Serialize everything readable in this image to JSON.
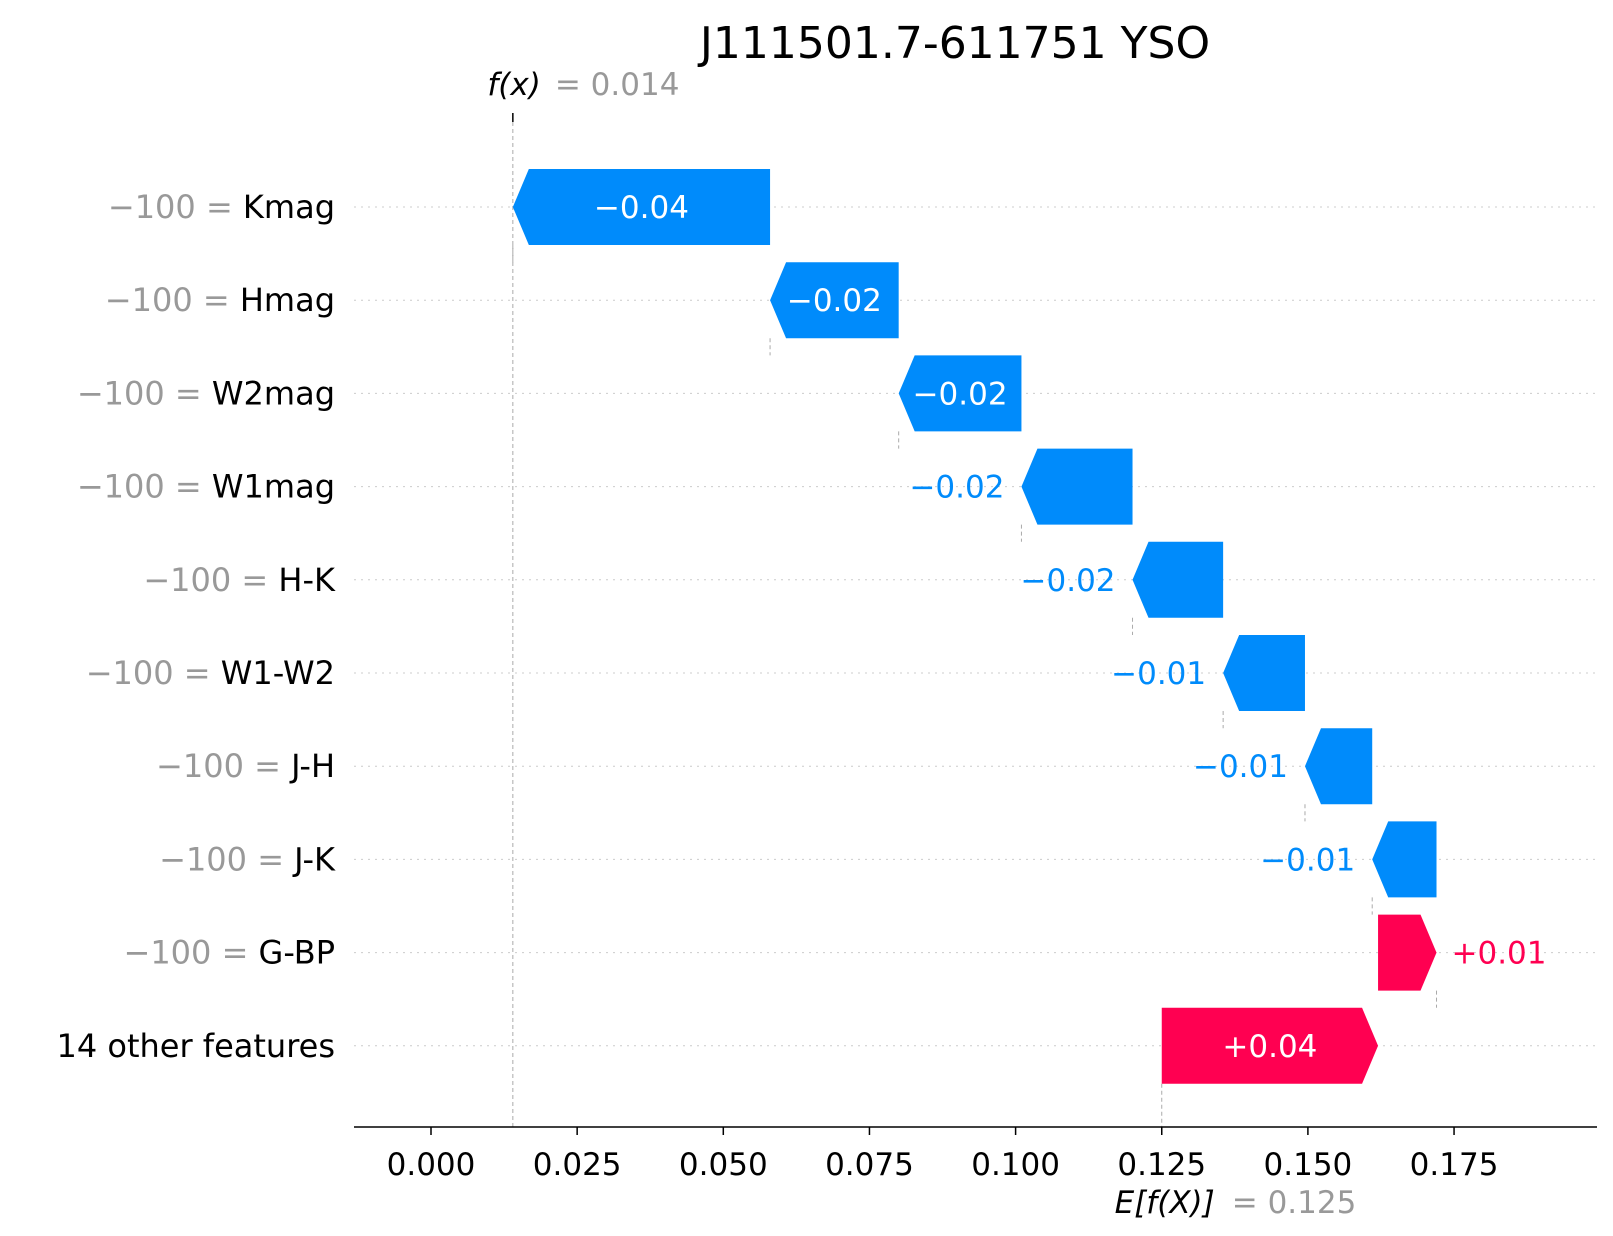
{
  "chart_data": {
    "type": "waterfall",
    "title": "J111501.7-611751 YSO",
    "fx": {
      "label": "f(x)",
      "value_text": "= 0.014",
      "value": 0.014
    },
    "ex": {
      "label": "E[f(X)]",
      "value_text": "= 0.125",
      "value": 0.125
    },
    "xlim": [
      -0.013,
      0.197
    ],
    "xticks": [
      0.0,
      0.025,
      0.05,
      0.075,
      0.1,
      0.125,
      0.15,
      0.175
    ],
    "xtick_labels": [
      "0.000",
      "0.025",
      "0.050",
      "0.075",
      "0.100",
      "0.125",
      "0.150",
      "0.175"
    ],
    "features": [
      {
        "value_text": "−100 =",
        "name": "Kmag",
        "start": 0.058,
        "end": 0.014,
        "label": "−0.04"
      },
      {
        "value_text": "−100 =",
        "name": "Hmag",
        "start": 0.08,
        "end": 0.058,
        "label": "−0.02"
      },
      {
        "value_text": "−100 =",
        "name": "W2mag",
        "start": 0.101,
        "end": 0.08,
        "label": "−0.02"
      },
      {
        "value_text": "−100 =",
        "name": "W1mag",
        "start": 0.12,
        "end": 0.101,
        "label": "−0.02"
      },
      {
        "value_text": "−100 =",
        "name": "H-K",
        "start": 0.1355,
        "end": 0.12,
        "label": "−0.02"
      },
      {
        "value_text": "−100 =",
        "name": "W1-W2",
        "start": 0.1495,
        "end": 0.1355,
        "label": "−0.01"
      },
      {
        "value_text": "−100 =",
        "name": "J-H",
        "start": 0.161,
        "end": 0.1495,
        "label": "−0.01"
      },
      {
        "value_text": "−100 =",
        "name": "J-K",
        "start": 0.172,
        "end": 0.161,
        "label": "−0.01"
      },
      {
        "value_text": "−100 =",
        "name": "G-BP",
        "start": 0.162,
        "end": 0.172,
        "label": "+0.01"
      },
      {
        "value_text": "",
        "name": "14 other features",
        "start": 0.125,
        "end": 0.162,
        "label": "+0.04"
      }
    ],
    "colors": {
      "negative": "#008bfb",
      "positive": "#ff0051",
      "label_gray": "#999999",
      "text": "#000000"
    }
  }
}
